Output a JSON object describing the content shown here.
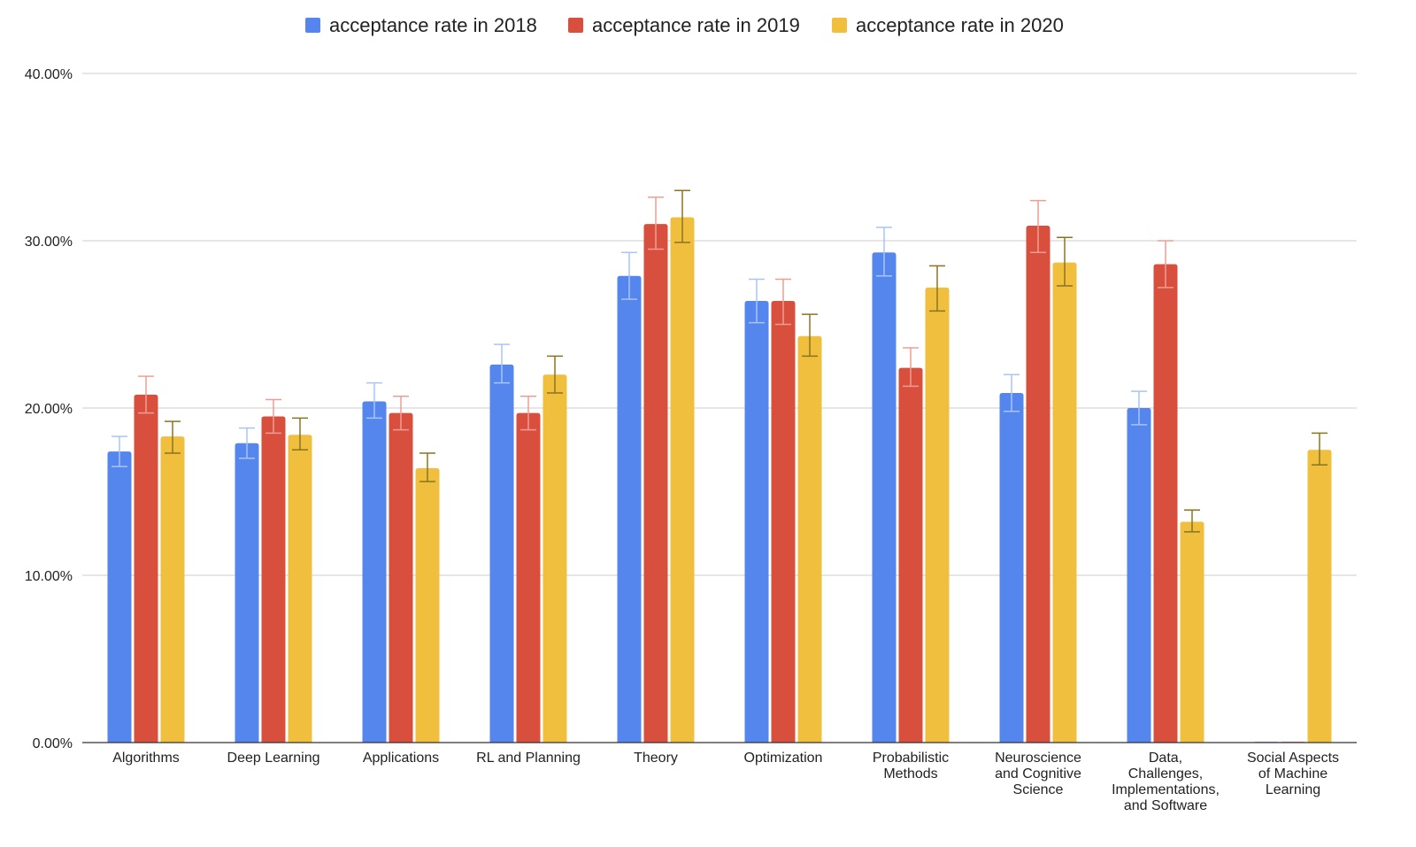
{
  "chart_data": {
    "type": "bar",
    "title": "",
    "xlabel": "",
    "ylabel": "",
    "ylim": [
      0,
      40
    ],
    "y_ticks": [
      "0.00%",
      "10.00%",
      "20.00%",
      "30.00%",
      "40.00%"
    ],
    "y_tick_values": [
      0,
      10,
      20,
      30,
      40
    ],
    "grid": true,
    "legend_position": "top-center",
    "error_bars": true,
    "categories": [
      "Algorithms",
      "Deep Learning",
      "Applications",
      "RL and Planning",
      "Theory",
      "Optimization",
      "Probabilistic Methods",
      "Neuroscience and Cognitive Science",
      "Data, Challenges, Implementations, and Software",
      "Social Aspects of Machine Learning"
    ],
    "category_label_lines": [
      [
        "Algorithms"
      ],
      [
        "Deep Learning"
      ],
      [
        "Applications"
      ],
      [
        "RL and Planning"
      ],
      [
        "Theory"
      ],
      [
        "Optimization"
      ],
      [
        "Probabilistic",
        "Methods"
      ],
      [
        "Neuroscience",
        "and Cognitive",
        "Science"
      ],
      [
        "Data,",
        "Challenges,",
        "Implementations,",
        "and Software"
      ],
      [
        "Social Aspects",
        "of Machine",
        "Learning"
      ]
    ],
    "series": [
      {
        "name": "acceptance rate in 2018",
        "color": "#5586ed",
        "error_color": "#a9c4f5",
        "values": [
          17.4,
          17.9,
          20.4,
          22.6,
          27.9,
          26.4,
          29.3,
          20.9,
          20.0,
          0
        ],
        "err_low": [
          16.5,
          17.0,
          19.4,
          21.5,
          26.5,
          25.1,
          27.9,
          19.8,
          19.0,
          0
        ],
        "err_high": [
          18.3,
          18.8,
          21.5,
          23.8,
          29.3,
          27.7,
          30.8,
          22.0,
          21.0,
          0
        ]
      },
      {
        "name": "acceptance rate in 2019",
        "color": "#d94f3d",
        "error_color": "#ef9d94",
        "values": [
          20.8,
          19.5,
          19.7,
          19.7,
          31.0,
          26.4,
          22.4,
          30.9,
          28.6,
          0
        ],
        "err_low": [
          19.7,
          18.5,
          18.7,
          18.7,
          29.5,
          25.0,
          21.3,
          29.3,
          27.2,
          0
        ],
        "err_high": [
          21.9,
          20.5,
          20.7,
          20.7,
          32.6,
          27.7,
          23.6,
          32.4,
          30.0,
          0
        ]
      },
      {
        "name": "acceptance rate in 2020",
        "color": "#f0bf3e",
        "error_color": "#8a7421",
        "values": [
          18.3,
          18.4,
          16.4,
          22.0,
          31.4,
          24.3,
          27.2,
          28.7,
          13.2,
          17.5
        ],
        "err_low": [
          17.3,
          17.5,
          15.6,
          20.9,
          29.9,
          23.1,
          25.8,
          27.3,
          12.6,
          16.6
        ],
        "err_high": [
          19.2,
          19.4,
          17.3,
          23.1,
          33.0,
          25.6,
          28.5,
          30.2,
          13.9,
          18.5
        ]
      }
    ]
  }
}
